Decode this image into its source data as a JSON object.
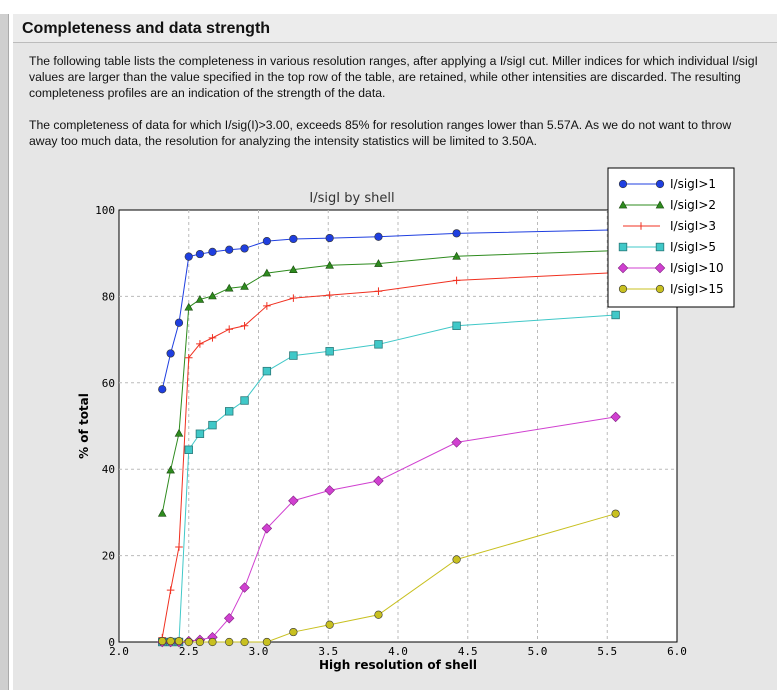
{
  "section": {
    "title": "Completeness and data strength",
    "paragraph1": "The following table lists the completeness in various resolution ranges, after applying a I/sigI cut. Miller indices for which individual I/sigI values are larger than the value specified in the top row of the table, are retained, while other intensities are discarded. The resulting completeness profiles are an indication of the strength of the data.",
    "paragraph2": "The completeness of data for which I/sig(I)>3.00, exceeds  85% for resolution ranges lower than 5.57A. As we do not want to throw away too much data, the resolution for analyzing the intensity statistics will be limited to 3.50A."
  },
  "chart_data": {
    "type": "line",
    "title": "I/sigI by shell",
    "xlabel": "High resolution of shell",
    "ylabel": "% of total",
    "xlim": [
      2.0,
      6.0
    ],
    "ylim": [
      0,
      100
    ],
    "grid": true,
    "legend_position": "top-right",
    "xticks": [
      "2.0",
      "2.5",
      "3.0",
      "3.5",
      "4.0",
      "4.5",
      "5.0",
      "5.5",
      "6.0"
    ],
    "yticks": [
      "0",
      "20",
      "40",
      "60",
      "80",
      "100"
    ],
    "x": [
      2.31,
      2.37,
      2.43,
      2.5,
      2.58,
      2.67,
      2.79,
      2.9,
      3.06,
      3.25,
      3.51,
      3.86,
      4.42,
      5.56
    ],
    "series": [
      {
        "name": "I/sigI>1",
        "color": "#1f3fe0",
        "marker": "circle",
        "values": [
          58.5,
          66.8,
          73.9,
          89.2,
          89.8,
          90.3,
          90.8,
          91.1,
          92.8,
          93.3,
          93.5,
          93.8,
          94.6,
          95.4
        ]
      },
      {
        "name": "I/sigI>2",
        "color": "#2e8b1e",
        "marker": "triangle",
        "values": [
          29.8,
          39.8,
          48.3,
          77.5,
          79.3,
          80.1,
          81.9,
          82.3,
          85.4,
          86.2,
          87.2,
          87.6,
          89.3,
          90.6
        ]
      },
      {
        "name": "I/sigI>3",
        "color": "#f03020",
        "marker": "plus",
        "values": [
          1,
          12,
          22,
          65.8,
          69,
          70.4,
          72.4,
          73.2,
          77.8,
          79.6,
          80.3,
          81.2,
          83.7,
          85.5
        ]
      },
      {
        "name": "I/sigI>5",
        "color": "#40c8c8",
        "marker": "square",
        "values": [
          0,
          0,
          0,
          44.5,
          48.2,
          50.2,
          53.4,
          55.9,
          62.7,
          66.3,
          67.3,
          68.9,
          73.2,
          75.7
        ]
      },
      {
        "name": "I/sigI>10",
        "color": "#d040d0",
        "marker": "diamond",
        "values": [
          0,
          0,
          0,
          0.2,
          0.5,
          1.1,
          5.5,
          12.6,
          26.3,
          32.7,
          35.1,
          37.3,
          46.2,
          52.1
        ]
      },
      {
        "name": "I/sigI>15",
        "color": "#c8c020",
        "marker": "circle",
        "values": [
          0.2,
          0.2,
          0.2,
          0,
          0,
          0,
          0,
          0,
          0,
          2.3,
          4.0,
          6.3,
          19.1,
          29.7
        ]
      }
    ]
  }
}
